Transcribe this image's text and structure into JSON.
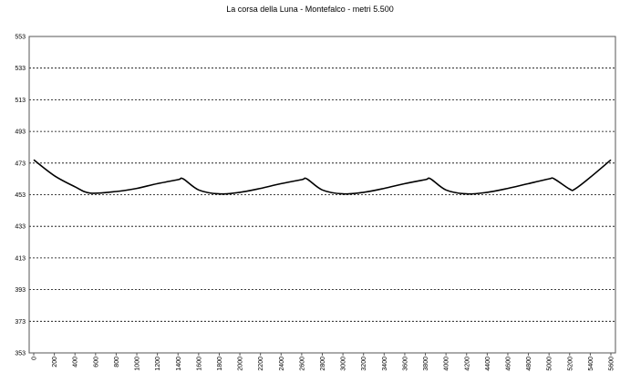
{
  "chart_data": {
    "type": "line",
    "title": "La corsa della Luna - Montefalco - metri 5.500",
    "xlabel": "",
    "ylabel": "",
    "x_ticks": [
      "0",
      "200",
      "400",
      "600",
      "800",
      "1000",
      "1200",
      "1400",
      "1600",
      "1800",
      "2000",
      "2200",
      "2400",
      "2600",
      "2800",
      "3000",
      "3200",
      "3400",
      "3600",
      "3800",
      "4000",
      "4200",
      "4400",
      "4600",
      "4800",
      "5000",
      "5200",
      "5400",
      "5600"
    ],
    "y_ticks": [
      "353",
      "373",
      "393",
      "413",
      "433",
      "453",
      "473",
      "493",
      "513",
      "533",
      "553"
    ],
    "xlim": [
      0,
      5600
    ],
    "ylim": [
      353,
      553
    ],
    "grid": "horizontal dashed",
    "series": [
      {
        "color": "#000000",
        "x": [
          0,
          200,
          400,
          550,
          800,
          1000,
          1200,
          1400,
          1450,
          1600,
          1800,
          2000,
          2200,
          2400,
          2600,
          2650,
          2800,
          3000,
          3200,
          3400,
          3600,
          3800,
          3850,
          4000,
          4200,
          4400,
          4600,
          4800,
          5000,
          5050,
          5200,
          5250,
          5400,
          5600
        ],
        "y": [
          475,
          465,
          458,
          454,
          455,
          457,
          460,
          462.5,
          463,
          456,
          453.5,
          454.5,
          457,
          460,
          462.5,
          463,
          456,
          453.5,
          454.5,
          457,
          460,
          462.5,
          463,
          456,
          453.5,
          454.5,
          457,
          460,
          463,
          463,
          456.5,
          456.5,
          464,
          475
        ]
      }
    ]
  }
}
